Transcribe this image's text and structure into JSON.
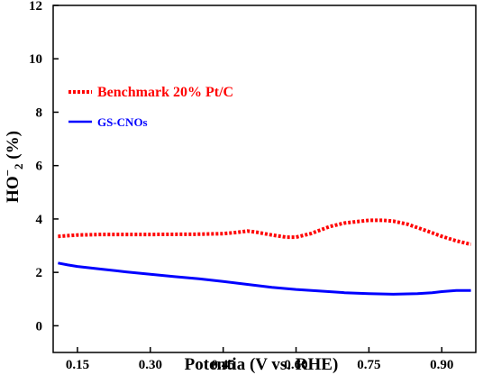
{
  "chart_data": {
    "type": "line",
    "xlabel": "Potentia (V vs. RHE)",
    "ylabel": {
      "main": "HO",
      "sup": "−",
      "sub": "2",
      "tail": " (%)"
    },
    "xlim": [
      0.1,
      0.97
    ],
    "ylim": [
      -1,
      12
    ],
    "x_ticks": [
      0.15,
      0.3,
      0.45,
      0.6,
      0.75,
      0.9
    ],
    "x_tick_labels": [
      "0.15",
      "0.30",
      "0.45",
      "0.60",
      "0.75",
      "0.90"
    ],
    "y_ticks": [
      0,
      2,
      4,
      6,
      8,
      10,
      12
    ],
    "y_tick_labels": [
      "0",
      "2",
      "4",
      "6",
      "8",
      "10",
      "12"
    ],
    "grid": false,
    "legend_position": "upper-left",
    "series": [
      {
        "name": "Benchmark 20% Pt/C",
        "color": "#ff0000",
        "style": "dotted",
        "x": [
          0.11,
          0.15,
          0.2,
          0.3,
          0.4,
          0.45,
          0.48,
          0.5,
          0.52,
          0.55,
          0.58,
          0.6,
          0.63,
          0.67,
          0.7,
          0.75,
          0.78,
          0.8,
          0.83,
          0.87,
          0.9,
          0.93,
          0.96
        ],
        "y": [
          3.35,
          3.4,
          3.42,
          3.42,
          3.43,
          3.45,
          3.5,
          3.55,
          3.5,
          3.4,
          3.32,
          3.32,
          3.45,
          3.72,
          3.85,
          3.95,
          3.95,
          3.92,
          3.8,
          3.55,
          3.35,
          3.18,
          3.05
        ]
      },
      {
        "name": "GS-CNOs",
        "color": "#0000ff",
        "style": "solid",
        "x": [
          0.11,
          0.13,
          0.15,
          0.2,
          0.25,
          0.3,
          0.35,
          0.4,
          0.45,
          0.5,
          0.55,
          0.6,
          0.65,
          0.7,
          0.75,
          0.8,
          0.85,
          0.88,
          0.9,
          0.93,
          0.96
        ],
        "y": [
          2.35,
          2.28,
          2.22,
          2.12,
          2.02,
          1.93,
          1.84,
          1.76,
          1.66,
          1.55,
          1.44,
          1.36,
          1.3,
          1.24,
          1.2,
          1.18,
          1.2,
          1.24,
          1.28,
          1.32,
          1.32
        ]
      }
    ]
  }
}
